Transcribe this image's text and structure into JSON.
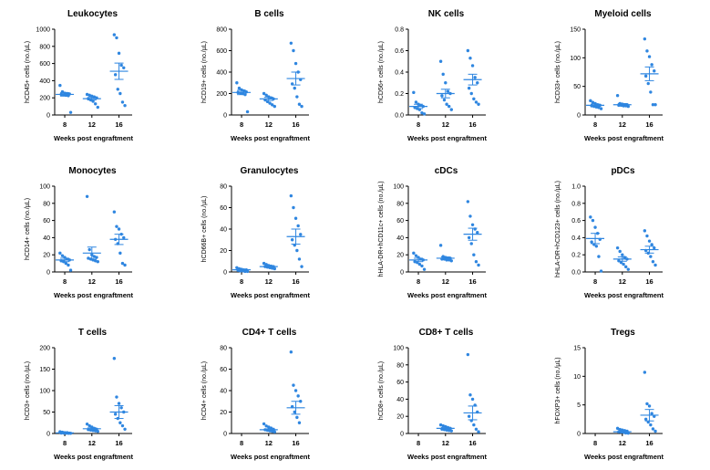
{
  "colors": {
    "point": "#2f86e0",
    "mean": "#2f86e0",
    "axis": "#000000"
  },
  "shared_xlabel": "Weeks post engraftment",
  "chart_data": [
    {
      "type": "scatter",
      "title": "Leukocytes",
      "ylabel": "hCD45+ cells (no./µL)",
      "ylim": [
        0,
        1000
      ],
      "yticks": [
        0,
        200,
        400,
        600,
        800,
        1000
      ],
      "yticklabels": [
        "0",
        "200",
        "400",
        "600",
        "800",
        "1000"
      ],
      "categories": [
        "8",
        "12",
        "16"
      ],
      "groups": [
        {
          "x": "8",
          "values": [
            345,
            270,
            255,
            250,
            245,
            240,
            235,
            230,
            225,
            30
          ],
          "mean": 240,
          "sem": 20
        },
        {
          "x": "12",
          "values": [
            240,
            230,
            220,
            210,
            200,
            190,
            175,
            160,
            130,
            90
          ],
          "mean": 190,
          "sem": 15
        },
        {
          "x": "16",
          "values": [
            935,
            900,
            720,
            580,
            550,
            470,
            300,
            250,
            150,
            110
          ],
          "mean": 510,
          "sem": 95
        }
      ]
    },
    {
      "type": "scatter",
      "title": "B cells",
      "ylabel": "hCD19+ cells (no./µL)",
      "ylim": [
        0,
        800
      ],
      "yticks": [
        0,
        200,
        400,
        600,
        800
      ],
      "yticklabels": [
        "0",
        "200",
        "400",
        "600",
        "800"
      ],
      "categories": [
        "8",
        "12",
        "16"
      ],
      "groups": [
        {
          "x": "8",
          "values": [
            300,
            250,
            235,
            225,
            215,
            210,
            205,
            200,
            190,
            30
          ],
          "mean": 210,
          "sem": 20
        },
        {
          "x": "12",
          "values": [
            200,
            185,
            170,
            160,
            150,
            140,
            125,
            110,
            95,
            80
          ],
          "mean": 150,
          "sem": 15
        },
        {
          "x": "16",
          "values": [
            670,
            600,
            480,
            400,
            330,
            290,
            250,
            170,
            100,
            80
          ],
          "mean": 340,
          "sem": 60
        }
      ]
    },
    {
      "type": "scatter",
      "title": "NK  cells",
      "ylabel": "hCD56+ cells (no./µL)",
      "ylim": [
        0,
        0.8
      ],
      "yticks": [
        0,
        0.2,
        0.4,
        0.6,
        0.8
      ],
      "yticklabels": [
        "0.0",
        "0.2",
        "0.4",
        "0.6",
        "0.8"
      ],
      "categories": [
        "8",
        "12",
        "16"
      ],
      "groups": [
        {
          "x": "8",
          "values": [
            0.21,
            0.12,
            0.1,
            0.09,
            0.08,
            0.07,
            0.06,
            0.05,
            0.02,
            0.01
          ],
          "mean": 0.08,
          "sem": 0.02
        },
        {
          "x": "12",
          "values": [
            0.5,
            0.38,
            0.3,
            0.22,
            0.2,
            0.18,
            0.14,
            0.1,
            0.08,
            0.05
          ],
          "mean": 0.2,
          "sem": 0.04
        },
        {
          "x": "16",
          "values": [
            0.6,
            0.53,
            0.46,
            0.35,
            0.3,
            0.25,
            0.2,
            0.15,
            0.12,
            0.1
          ],
          "mean": 0.33,
          "sem": 0.05
        }
      ]
    },
    {
      "type": "scatter",
      "title": "Myeloid cells",
      "ylabel": "hCD33+ cells (no./µL)",
      "ylim": [
        0,
        150
      ],
      "yticks": [
        0,
        50,
        100,
        150
      ],
      "yticklabels": [
        "0",
        "50",
        "100",
        "150"
      ],
      "categories": [
        "8",
        "12",
        "16"
      ],
      "groups": [
        {
          "x": "8",
          "values": [
            25,
            22,
            20,
            18,
            17,
            16,
            15,
            14,
            13,
            11
          ],
          "mean": 17,
          "sem": 2
        },
        {
          "x": "12",
          "values": [
            34,
            20,
            19,
            18,
            18,
            17,
            17,
            16,
            16,
            15
          ],
          "mean": 18,
          "sem": 2
        },
        {
          "x": "16",
          "values": [
            133,
            112,
            102,
            88,
            77,
            68,
            55,
            40,
            18,
            18
          ],
          "mean": 72,
          "sem": 12
        }
      ]
    },
    {
      "type": "scatter",
      "title": "Monocytes",
      "ylabel": "hCD14+ cells (no./µL)",
      "ylim": [
        0,
        100
      ],
      "yticks": [
        0,
        20,
        40,
        60,
        80,
        100
      ],
      "yticklabels": [
        "0",
        "20",
        "40",
        "60",
        "80",
        "100"
      ],
      "categories": [
        "8",
        "12",
        "16"
      ],
      "groups": [
        {
          "x": "8",
          "values": [
            22,
            19,
            17,
            15,
            14,
            13,
            12,
            10,
            8,
            2
          ],
          "mean": 14,
          "sem": 2
        },
        {
          "x": "12",
          "values": [
            88,
            26,
            20,
            18,
            17,
            16,
            15,
            14,
            13,
            12
          ],
          "mean": 22,
          "sem": 7
        },
        {
          "x": "16",
          "values": [
            70,
            53,
            50,
            44,
            40,
            38,
            33,
            22,
            10,
            8
          ],
          "mean": 38,
          "sem": 6
        }
      ]
    },
    {
      "type": "scatter",
      "title": "Granulocytes",
      "ylabel": "hCD66B+ cells (no./µL)",
      "ylim": [
        0,
        80
      ],
      "yticks": [
        0,
        20,
        40,
        60,
        80
      ],
      "yticklabels": [
        "0",
        "20",
        "40",
        "60",
        "80"
      ],
      "categories": [
        "8",
        "12",
        "16"
      ],
      "groups": [
        {
          "x": "8",
          "values": [
            4,
            3,
            2.5,
            2,
            2,
            1.5,
            1,
            1,
            0.5,
            0.5
          ],
          "mean": 2,
          "sem": 0.5
        },
        {
          "x": "12",
          "values": [
            8,
            7,
            6,
            5.5,
            5,
            5,
            4.5,
            4,
            3.5,
            3
          ],
          "mean": 5,
          "sem": 0.6
        },
        {
          "x": "16",
          "values": [
            71,
            60,
            50,
            43,
            35,
            30,
            25,
            20,
            12,
            5
          ],
          "mean": 33,
          "sem": 7
        }
      ]
    },
    {
      "type": "scatter",
      "title": "cDCs",
      "ylabel": "hHLA-DR+hCD11c+ cells (no./µL)",
      "ylim": [
        0,
        100
      ],
      "yticks": [
        0,
        20,
        40,
        60,
        80,
        100
      ],
      "yticklabels": [
        "0",
        "20",
        "40",
        "60",
        "80",
        "100"
      ],
      "categories": [
        "8",
        "12",
        "16"
      ],
      "groups": [
        {
          "x": "8",
          "values": [
            22,
            19,
            17,
            15,
            14,
            12,
            11,
            9,
            7,
            3
          ],
          "mean": 14,
          "sem": 2
        },
        {
          "x": "12",
          "values": [
            31,
            18,
            17,
            16,
            16,
            15,
            15,
            14,
            14,
            13
          ],
          "mean": 16,
          "sem": 1.5
        },
        {
          "x": "16",
          "values": [
            82,
            65,
            55,
            50,
            46,
            40,
            33,
            20,
            12,
            8
          ],
          "mean": 44,
          "sem": 7
        }
      ]
    },
    {
      "type": "scatter",
      "title": "pDCs",
      "ylabel": "hHLA-DR+hCD123+ cells (no./µL)",
      "ylim": [
        0,
        1.0
      ],
      "yticks": [
        0,
        0.2,
        0.4,
        0.6,
        0.8,
        1.0
      ],
      "yticklabels": [
        "0.0",
        "0.2",
        "0.4",
        "0.6",
        "0.8",
        "1.0"
      ],
      "categories": [
        "8",
        "12",
        "16"
      ],
      "groups": [
        {
          "x": "8",
          "values": [
            0.64,
            0.6,
            0.52,
            0.45,
            0.38,
            0.35,
            0.32,
            0.3,
            0.18,
            0.01
          ],
          "mean": 0.39,
          "sem": 0.06
        },
        {
          "x": "12",
          "values": [
            0.28,
            0.24,
            0.2,
            0.17,
            0.15,
            0.13,
            0.11,
            0.09,
            0.06,
            0.03
          ],
          "mean": 0.15,
          "sem": 0.025
        },
        {
          "x": "16",
          "values": [
            0.48,
            0.42,
            0.36,
            0.32,
            0.28,
            0.25,
            0.22,
            0.18,
            0.12,
            0.08
          ],
          "mean": 0.26,
          "sem": 0.04
        }
      ]
    },
    {
      "type": "scatter",
      "title": "T cells",
      "ylabel": "hCD3+ cells (no./µL)",
      "ylim": [
        0,
        200
      ],
      "yticks": [
        0,
        50,
        100,
        150,
        200
      ],
      "yticklabels": [
        "0",
        "50",
        "100",
        "150",
        "200"
      ],
      "categories": [
        "8",
        "12",
        "16"
      ],
      "groups": [
        {
          "x": "8",
          "values": [
            4,
            3,
            2,
            2,
            1,
            1,
            1,
            0.5,
            0.5,
            0.5
          ],
          "mean": 1.5,
          "sem": 0.4
        },
        {
          "x": "12",
          "values": [
            22,
            18,
            15,
            12,
            10,
            9,
            8,
            7,
            6,
            5
          ],
          "mean": 11,
          "sem": 2
        },
        {
          "x": "16",
          "values": [
            175,
            85,
            70,
            60,
            50,
            45,
            35,
            25,
            18,
            10
          ],
          "mean": 50,
          "sem": 15
        }
      ]
    },
    {
      "type": "scatter",
      "title": "CD4+ T cells",
      "ylabel": "hCD4+ cells (no./µL)",
      "ylim": [
        0,
        80
      ],
      "yticks": [
        0,
        20,
        40,
        60,
        80
      ],
      "yticklabels": [
        "0",
        "20",
        "40",
        "60",
        "80"
      ],
      "categories": [
        "8",
        "12",
        "16"
      ],
      "groups": [
        {
          "x": "12",
          "values": [
            9,
            7,
            6,
            5,
            4,
            3.5,
            3,
            2.5,
            2,
            1.5
          ],
          "mean": 3.5,
          "sem": 0.8
        },
        {
          "x": "16",
          "values": [
            76,
            45,
            40,
            35,
            30,
            25,
            20,
            15,
            10
          ],
          "mean": 24,
          "sem": 6
        }
      ]
    },
    {
      "type": "scatter",
      "title": "CD8+ T cells",
      "ylabel": "hCD8+ cells (no./µL)",
      "ylim": [
        0,
        100
      ],
      "yticks": [
        0,
        20,
        40,
        60,
        80,
        100
      ],
      "yticklabels": [
        "0",
        "20",
        "40",
        "60",
        "80",
        "100"
      ],
      "categories": [
        "8",
        "12",
        "16"
      ],
      "groups": [
        {
          "x": "12",
          "values": [
            10,
            9,
            8,
            7,
            6,
            5,
            4.5,
            4,
            3.5,
            3
          ],
          "mean": 6,
          "sem": 1
        },
        {
          "x": "16",
          "values": [
            92,
            45,
            40,
            33,
            25,
            20,
            15,
            10,
            5,
            2
          ],
          "mean": 24,
          "sem": 8
        }
      ]
    },
    {
      "type": "scatter",
      "title": "Tregs",
      "ylabel": "hFOXP3+ cells (no./µL)",
      "ylim": [
        0,
        15
      ],
      "yticks": [
        0,
        5,
        10,
        15
      ],
      "yticklabels": [
        "0",
        "5",
        "10",
        "15"
      ],
      "categories": [
        "8",
        "12",
        "16"
      ],
      "groups": [
        {
          "x": "12",
          "values": [
            0.9,
            0.7,
            0.6,
            0.5,
            0.4,
            0.3,
            0.25,
            0.2,
            0.1,
            0.05
          ],
          "mean": 0.3,
          "sem": 0.1
        },
        {
          "x": "16",
          "values": [
            10.7,
            5.2,
            4.8,
            3.5,
            3,
            2.5,
            2,
            1.5,
            0.8,
            0.4
          ],
          "mean": 3.2,
          "sem": 1
        }
      ]
    }
  ]
}
